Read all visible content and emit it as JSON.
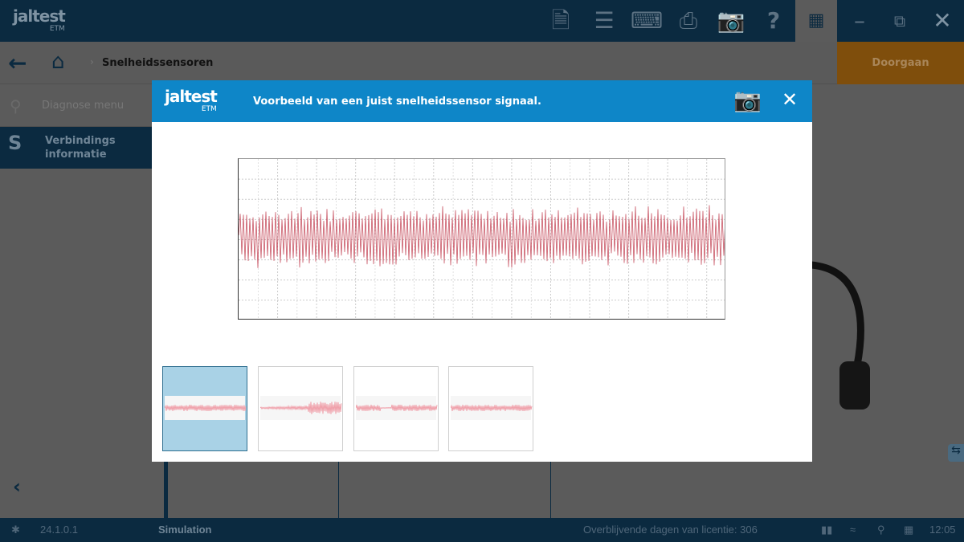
{
  "app": {
    "logo": "jaltest",
    "logo_sub": "ETM"
  },
  "toolbar": {
    "icons": [
      "report-icon",
      "list-icon",
      "keyboard-icon",
      "printer-icon",
      "camera-icon",
      "help-icon",
      "grid-icon",
      "minimize-icon",
      "restore-icon",
      "close-icon"
    ]
  },
  "breadcrumb": {
    "current": "Snelheidssensoren"
  },
  "actions": {
    "continue": "Doorgaan"
  },
  "sidebar": {
    "items": [
      {
        "label": "Diagnose menu"
      },
      {
        "label_line1": "Verbindings",
        "label_line2": "informatie"
      }
    ]
  },
  "modal": {
    "logo": "jaltest",
    "logo_sub": "ETM",
    "title": "Voorbeeld van een juist snelheidssensor signaal.",
    "selected_thumbnail": 0,
    "thumbnail_count": 4
  },
  "statusbar": {
    "version": "24.1.0.1",
    "mode": "Simulation",
    "license": "Overblijvende dagen van licentie: 306",
    "time": "12:05"
  },
  "colors": {
    "modal_header": "#0e86c8",
    "topbar": "#0b2a40",
    "signal": "#c0394b",
    "continue": "#7f4e0c"
  }
}
